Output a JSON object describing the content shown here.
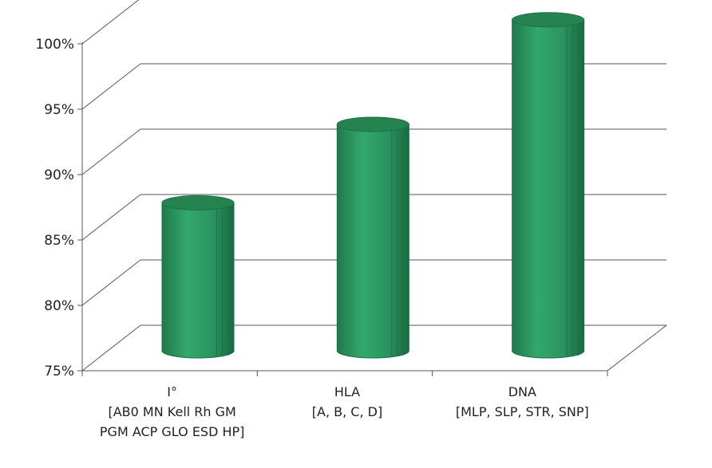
{
  "chart_data": {
    "type": "bar",
    "style": "3d-cylinder",
    "categories": [
      [
        "I°",
        "[AB0 MN Kell Rh GM",
        "PGM ACP GLO ESD HP]"
      ],
      [
        "HLA",
        "[A, B, C, D]"
      ],
      [
        "DNA",
        "[MLP, SLP, STR, SNP]"
      ]
    ],
    "values": [
      86.5,
      92.5,
      100.5
    ],
    "ylim": [
      75,
      100
    ],
    "yticks": [
      75,
      80,
      85,
      90,
      95,
      100
    ],
    "ytick_labels": [
      "75%",
      "80%",
      "85%",
      "90%",
      "95%",
      "100%"
    ],
    "grid": true,
    "legend": "none",
    "colors": {
      "bar_body": "#2e9a62",
      "bar_dark": "#1d6e45",
      "bar_top": "#25834f",
      "grid": "#555555"
    }
  }
}
